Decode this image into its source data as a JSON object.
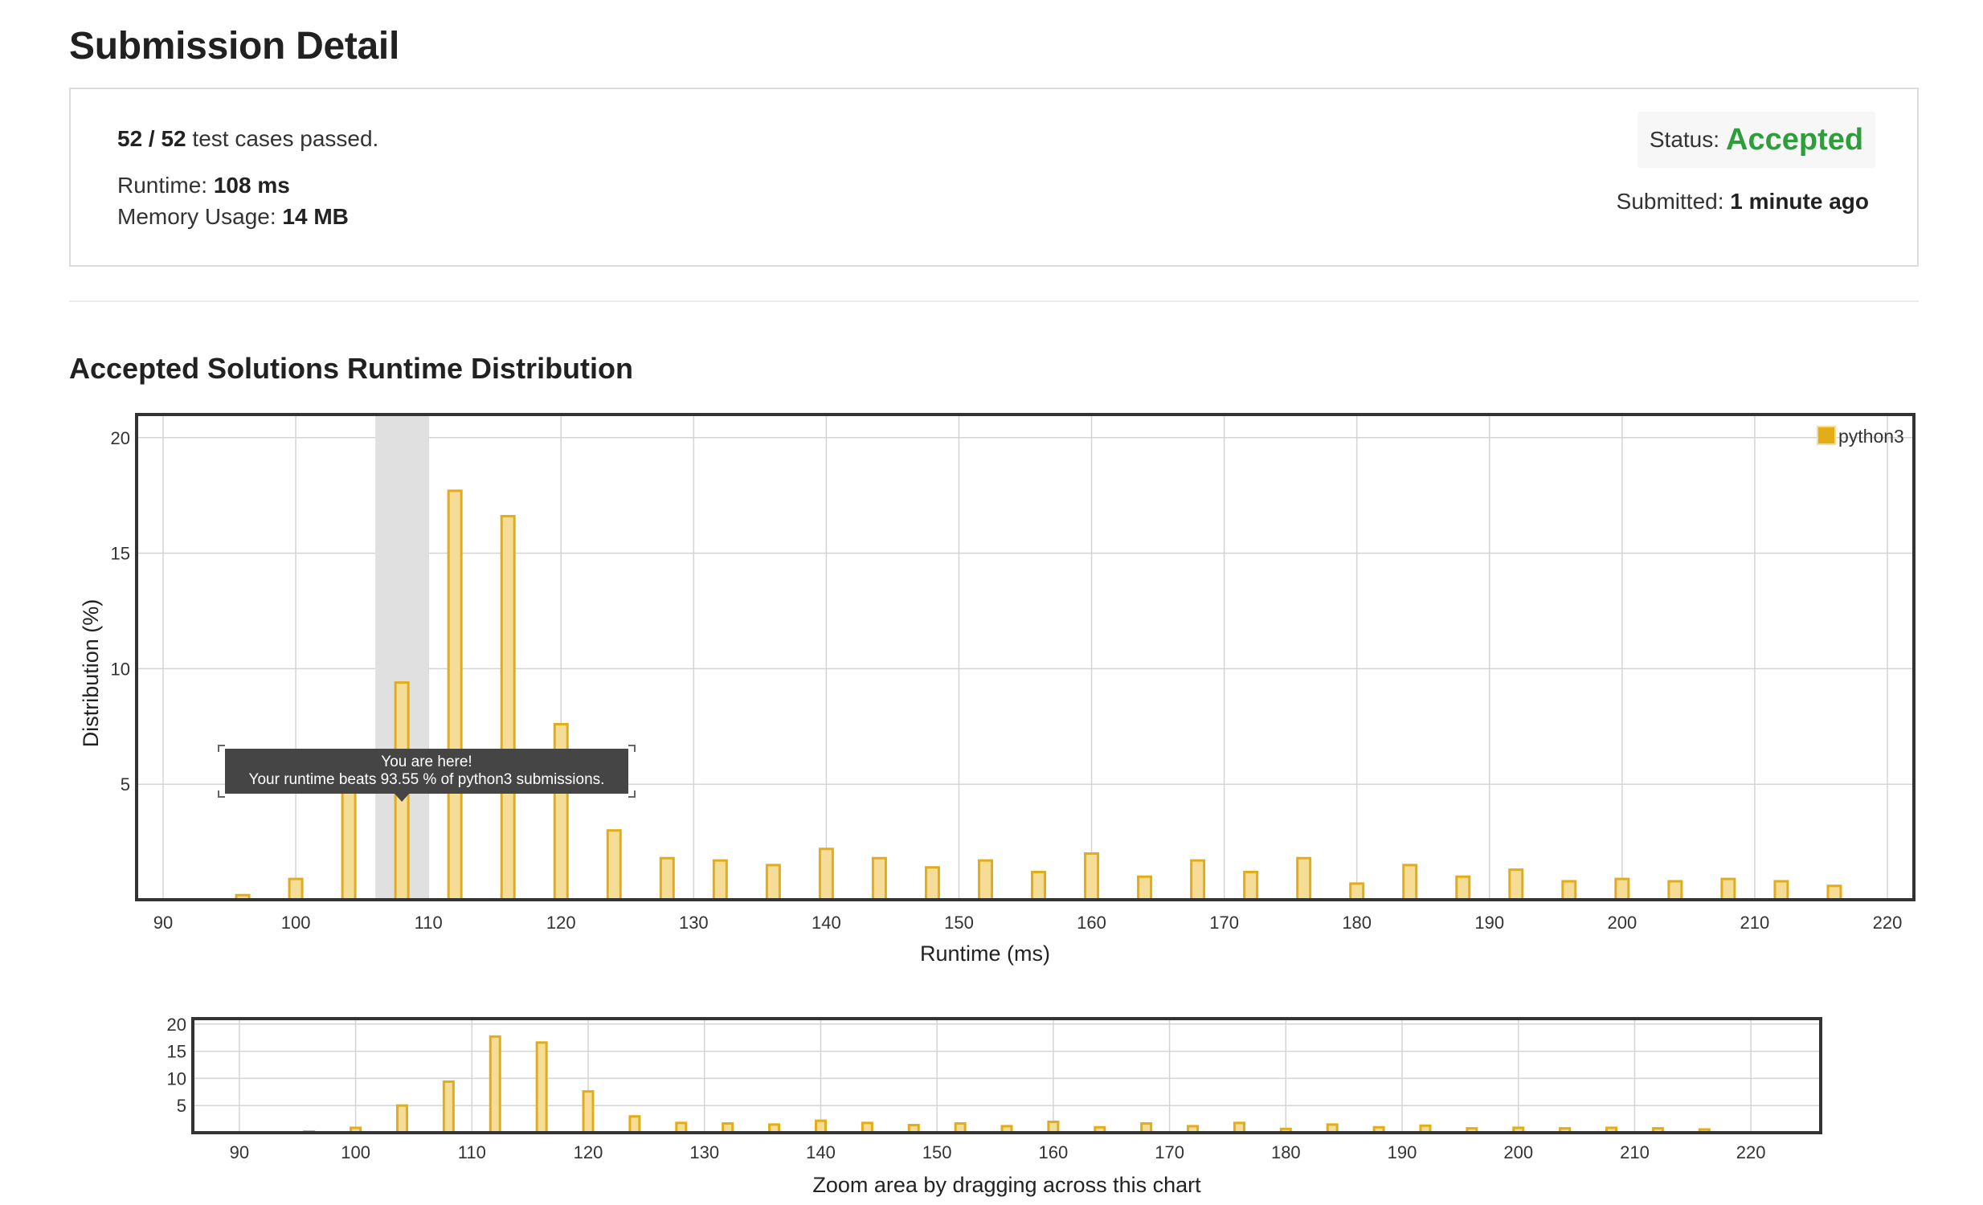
{
  "page_title": "Submission Detail",
  "summary": {
    "passed": "52 / 52",
    "passed_suffix": " test cases passed.",
    "runtime_label": "Runtime: ",
    "runtime_value": "108 ms",
    "memory_label": "Memory Usage: ",
    "memory_value": "14 MB",
    "status_label": "Status:",
    "status_value": "Accepted",
    "submitted_label": "Submitted: ",
    "submitted_value": "1 minute ago"
  },
  "distribution_title": "Accepted Solutions Runtime Distribution",
  "tooltip": {
    "line1": "You are here!",
    "line2": "Your runtime beats 93.55 % of python3 submissions."
  },
  "zoom_caption": "Zoom area by dragging across this chart",
  "colors": {
    "accepted": "#2e9e3b",
    "bar_fill": "#f5dc97",
    "bar_stroke": "#e2ad16",
    "highlight_band": "#e0e0e0",
    "tooltip_bg": "#454545"
  },
  "chart_data": [
    {
      "type": "bar",
      "name": "main",
      "xlabel": "Runtime (ms)",
      "ylabel": "Distribution (%)",
      "xlim": [
        88,
        222
      ],
      "ylim": [
        0,
        21
      ],
      "xticks": [
        90,
        100,
        110,
        120,
        130,
        140,
        150,
        160,
        170,
        180,
        190,
        200,
        210,
        220
      ],
      "yticks": [
        5,
        10,
        15,
        20
      ],
      "grid": true,
      "legend": "top-right",
      "highlight_range": [
        106,
        110
      ],
      "series": [
        {
          "name": "python3",
          "x": [
            96,
            100,
            104,
            108,
            112,
            116,
            120,
            124,
            128,
            132,
            136,
            140,
            144,
            148,
            152,
            156,
            160,
            164,
            168,
            172,
            176,
            180,
            184,
            188,
            192,
            196,
            200,
            204,
            208,
            212,
            216
          ],
          "y": [
            0.2,
            0.9,
            5.0,
            9.4,
            17.7,
            16.6,
            7.6,
            3.0,
            1.8,
            1.7,
            1.5,
            2.2,
            1.8,
            1.4,
            1.7,
            1.2,
            2.0,
            1.0,
            1.7,
            1.2,
            1.8,
            0.7,
            1.5,
            1.0,
            1.3,
            0.8,
            0.9,
            0.8,
            0.9,
            0.8,
            0.6
          ]
        }
      ]
    },
    {
      "type": "bar",
      "name": "navigator",
      "xlabel": "",
      "ylabel": "",
      "xlim": [
        86,
        226
      ],
      "ylim": [
        0,
        21
      ],
      "xticks": [
        90,
        100,
        110,
        120,
        130,
        140,
        150,
        160,
        170,
        180,
        190,
        200,
        210,
        220
      ],
      "yticks": [
        5,
        10,
        15,
        20
      ],
      "grid": true,
      "series_ref": "python3"
    }
  ]
}
